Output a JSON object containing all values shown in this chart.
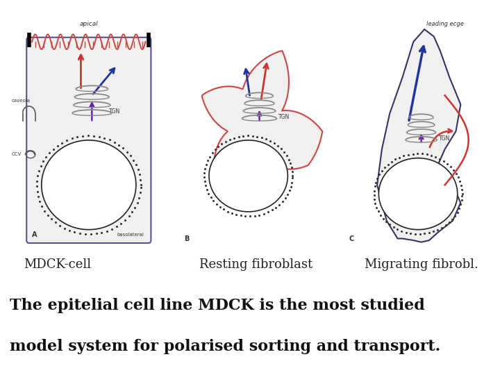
{
  "background_color": "#ffffff",
  "label_a": "MDCK-cell",
  "label_b": "Resting fibroblast",
  "label_c": "Migrating fibrobl.",
  "caption_line1": "The epitelial cell line MDCK is the most studied",
  "caption_line2": "model system for polarised sorting and transport.",
  "label_fontsize": 13,
  "caption_fontsize": 16,
  "fig_width": 7.2,
  "fig_height": 5.4,
  "panel_border_color": "#888888",
  "text_color_labels": "#222222",
  "text_color_caption": "#111111",
  "panel_bg": "#e8e8e0"
}
